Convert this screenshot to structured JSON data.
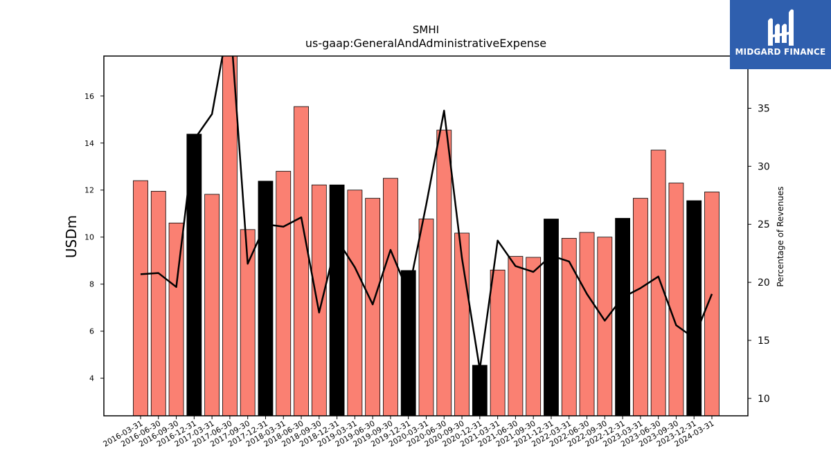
{
  "chart_data": {
    "type": "bar",
    "title": "SMHI",
    "subtitle": "us-gaap:GeneralAndAdministrativeExpense",
    "ylabel": "USDm",
    "y2label": "Percentage of Revenues",
    "ylim": [
      2.4,
      17.7
    ],
    "y2lim": [
      8.5,
      39.5
    ],
    "yticks": [
      4,
      6,
      8,
      10,
      12,
      14,
      16
    ],
    "y2ticks": [
      10,
      15,
      20,
      25,
      30,
      35
    ],
    "categories": [
      "2016-03-31",
      "2016-06-30",
      "2016-09-30",
      "2016-12-31",
      "2017-03-31",
      "2017-06-30",
      "2017-09-30",
      "2017-12-31",
      "2018-03-31",
      "2018-06-30",
      "2018-09-30",
      "2018-12-31",
      "2019-03-31",
      "2019-06-30",
      "2019-09-30",
      "2019-12-31",
      "2020-03-31",
      "2020-06-30",
      "2020-09-30",
      "2020-12-31",
      "2021-03-31",
      "2021-06-30",
      "2021-09-30",
      "2021-12-31",
      "2022-03-31",
      "2022-06-30",
      "2022-09-30",
      "2022-12-31",
      "2023-03-31",
      "2023-06-30",
      "2023-09-30",
      "2023-12-31",
      "2024-03-31"
    ],
    "series": [
      {
        "type": "bar",
        "values": [
          12.4,
          11.95,
          10.6,
          14.38,
          11.82,
          17.9,
          10.32,
          12.38,
          12.8,
          15.55,
          12.22,
          12.22,
          12.0,
          11.65,
          12.5,
          8.58,
          10.77,
          14.55,
          10.17,
          4.55,
          8.6,
          9.18,
          9.14,
          10.77,
          9.95,
          10.2,
          10.0,
          10.8,
          11.65,
          13.7,
          12.3,
          11.55,
          11.92
        ],
        "colors": [
          "#fa8072",
          "#fa8072",
          "#fa8072",
          "#000000",
          "#fa8072",
          "#fa8072",
          "#fa8072",
          "#000000",
          "#fa8072",
          "#fa8072",
          "#fa8072",
          "#000000",
          "#fa8072",
          "#fa8072",
          "#fa8072",
          "#000000",
          "#fa8072",
          "#fa8072",
          "#fa8072",
          "#000000",
          "#fa8072",
          "#fa8072",
          "#fa8072",
          "#000000",
          "#fa8072",
          "#fa8072",
          "#fa8072",
          "#000000",
          "#fa8072",
          "#fa8072",
          "#fa8072",
          "#000000",
          "#fa8072"
        ]
      },
      {
        "type": "line",
        "axis": "right",
        "color": "#000000",
        "values": [
          20.7,
          20.8,
          19.6,
          32.3,
          34.5,
          43.0,
          21.6,
          25.0,
          24.8,
          25.6,
          17.4,
          23.7,
          21.3,
          18.1,
          22.8,
          19.1,
          26.7,
          34.8,
          22.1,
          12.5,
          23.6,
          21.4,
          20.9,
          22.3,
          21.8,
          19.0,
          16.7,
          18.7,
          19.5,
          20.5,
          16.3,
          15.2,
          19.0
        ]
      }
    ],
    "grid": false,
    "legend": "none"
  },
  "logo": {
    "text": "MIDGARD FINANCE",
    "color": "#2f5fae"
  }
}
